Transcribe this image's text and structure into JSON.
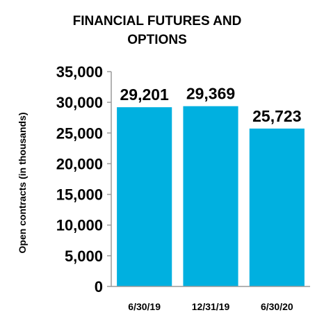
{
  "chart_data": {
    "type": "bar",
    "title_lines": [
      "FINANCIAL FUTURES AND",
      "OPTIONS"
    ],
    "ylabel": "Open contracts (in thousands)",
    "xlabel": "",
    "categories": [
      "6/30/19",
      "12/31/19",
      "6/30/20"
    ],
    "values": [
      29201,
      29369,
      25723
    ],
    "value_labels": [
      "29,201",
      "29,369",
      "25,723"
    ],
    "yticks": [
      0,
      5000,
      10000,
      15000,
      20000,
      25000,
      30000,
      35000
    ],
    "ytick_labels": [
      "0",
      "5,000",
      "10,000",
      "15,000",
      "20,000",
      "25,000",
      "30,000",
      "35,000"
    ],
    "ylim": [
      0,
      35000
    ],
    "grid": false,
    "legend": "none",
    "bar_color": "#00b0e0"
  }
}
